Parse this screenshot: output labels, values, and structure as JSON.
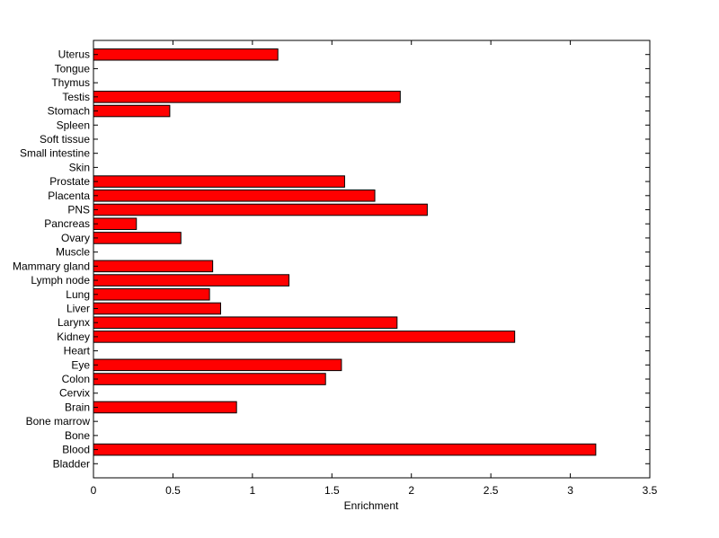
{
  "chart_data": {
    "type": "bar",
    "orientation": "horizontal",
    "title": "",
    "xlabel": "Enrichment",
    "ylabel": "",
    "xlim": [
      0,
      3.5
    ],
    "xticks": [
      "0",
      "0.5",
      "1",
      "1.5",
      "2",
      "2.5",
      "3",
      "3.5"
    ],
    "grid": false,
    "bar_color": "#ff0000",
    "categories": [
      "Bladder",
      "Blood",
      "Bone",
      "Bone marrow",
      "Brain",
      "Cervix",
      "Colon",
      "Eye",
      "Heart",
      "Kidney",
      "Larynx",
      "Liver",
      "Lung",
      "Lymph node",
      "Mammary gland",
      "Muscle",
      "Ovary",
      "Pancreas",
      "PNS",
      "Placenta",
      "Prostate",
      "Skin",
      "Small intestine",
      "Soft tissue",
      "Spleen",
      "Stomach",
      "Testis",
      "Thymus",
      "Tongue",
      "Uterus"
    ],
    "values": [
      0,
      3.16,
      0,
      0,
      0.9,
      0,
      1.46,
      1.56,
      0,
      2.65,
      1.91,
      0.8,
      0.73,
      1.23,
      0.75,
      0,
      0.55,
      0.27,
      2.1,
      1.77,
      1.58,
      0,
      0,
      0,
      0,
      0.48,
      1.93,
      0,
      0,
      1.16
    ]
  }
}
